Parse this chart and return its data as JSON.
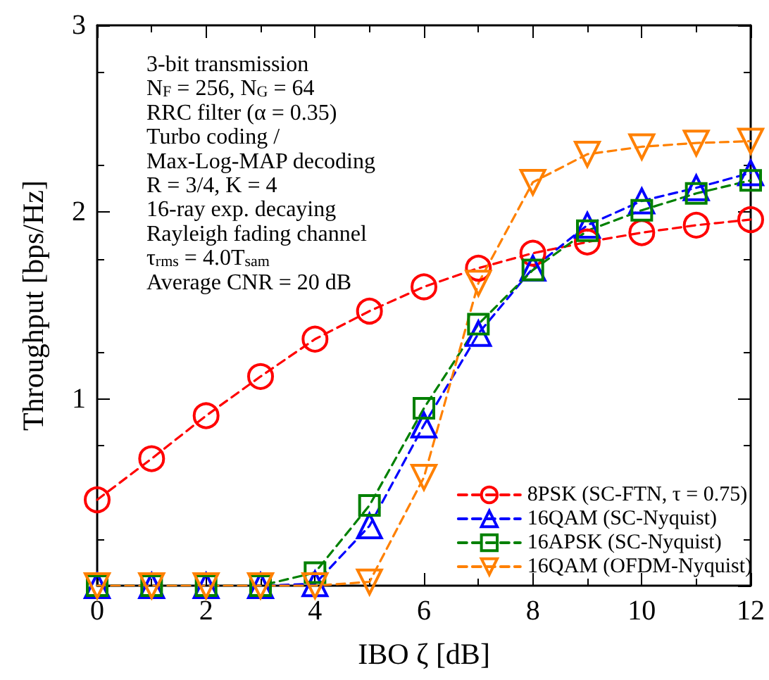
{
  "chart_data": {
    "type": "line",
    "xlabel": "IBO ζ [dB]",
    "ylabel": "Throughput [bps/Hz]",
    "x": [
      0,
      1,
      2,
      3,
      4,
      5,
      6,
      7,
      8,
      9,
      10,
      11,
      12
    ],
    "xlim": [
      0,
      12
    ],
    "xticks": [
      0,
      2,
      4,
      6,
      8,
      10,
      12
    ],
    "ylim": [
      0,
      3
    ],
    "yticks": [
      {
        "value": 0,
        "label": null
      },
      1,
      2,
      3
    ],
    "grid": false,
    "legend": "bottom right",
    "line_style": "dashed",
    "annotations": [
      "3-bit transmission",
      "N$_{F}$ = 256, N$_{G}$ = 64",
      "RRC filter (α = 0.35)",
      "Turbo coding /",
      "Max-Log-MAP decoding",
      "R = 3/4, K = 4",
      "16-ray exp. decaying",
      "Rayleigh fading channel",
      "τ$_{rms}$ = 4.0T$_{sam}$",
      "Average CNR = 20 dB"
    ],
    "series": [
      {
        "name": "8PSK (SC-FTN, τ = 0.75)",
        "color": "#ff0000",
        "marker": "circle",
        "values": [
          0.46,
          0.68,
          0.91,
          1.12,
          1.32,
          1.47,
          1.6,
          1.7,
          1.78,
          1.84,
          1.89,
          1.93,
          1.96
        ]
      },
      {
        "name": "16QAM (SC-Nyquist)",
        "color": "#0000ff",
        "marker": "triangle",
        "values": [
          0,
          0,
          0,
          0,
          0.01,
          0.32,
          0.86,
          1.35,
          1.7,
          1.93,
          2.06,
          2.13,
          2.21
        ]
      },
      {
        "name": "16APSK (SC-Nyquist)",
        "color": "#008000",
        "marker": "square",
        "values": [
          0,
          0,
          0,
          0,
          0.07,
          0.43,
          0.95,
          1.4,
          1.69,
          1.9,
          2.01,
          2.1,
          2.17
        ]
      },
      {
        "name": "16QAM (OFDM-Nyquist)",
        "color": "#ff8000",
        "marker": "triangle-down",
        "values": [
          0,
          0,
          0,
          0,
          0,
          0.02,
          0.58,
          1.62,
          2.16,
          2.31,
          2.35,
          2.37,
          2.38
        ]
      }
    ]
  }
}
